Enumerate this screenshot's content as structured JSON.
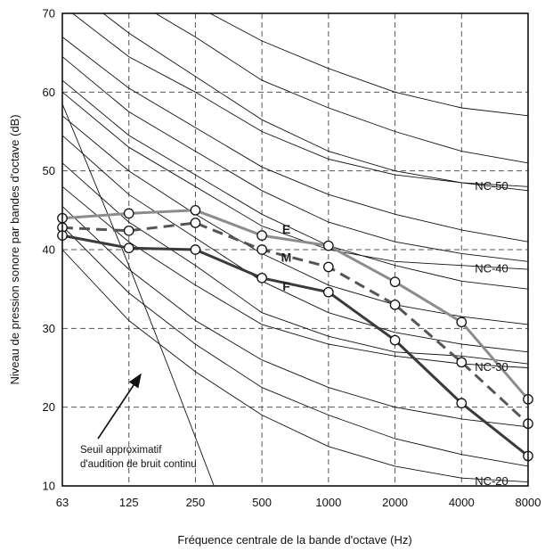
{
  "chart_data": {
    "type": "line",
    "xlabel": "Fréquence centrale de la bande d'octave (Hz)",
    "ylabel": "Niveau de pression sonore par bandes d'octave (dB)",
    "categories": [
      "63",
      "125",
      "250",
      "500",
      "1000",
      "2000",
      "4000",
      "8000"
    ],
    "ylim": [
      10,
      70
    ],
    "yticks": [
      10,
      20,
      30,
      40,
      50,
      60,
      70
    ],
    "grid": true,
    "series": [
      {
        "name": "E",
        "values": [
          44.0,
          44.6,
          45.0,
          41.8,
          40.5,
          35.9,
          30.8,
          21.0
        ],
        "color": "#8c8c8c",
        "dash": "solid"
      },
      {
        "name": "M",
        "values": [
          42.8,
          42.4,
          43.4,
          40.0,
          37.8,
          33.0,
          25.7,
          17.9
        ],
        "color": "#555555",
        "dash": "dashed"
      },
      {
        "name": "F",
        "values": [
          41.8,
          40.2,
          40.0,
          36.4,
          34.6,
          28.5,
          20.5,
          13.8
        ],
        "color": "#3a3a3a",
        "dash": "solid"
      }
    ],
    "nc_curves": [
      {
        "values": [
          83.0,
          76.0,
          71.0,
          66.5,
          63.0,
          60.0,
          58.0,
          57.0
        ]
      },
      {
        "values": [
          79.0,
          72.0,
          67.0,
          61.5,
          58.0,
          55.0,
          52.5,
          51.0
        ]
      },
      {
        "values": [
          74.0,
          67.5,
          62.0,
          56.5,
          52.5,
          50.0,
          48.5,
          47.5
        ]
      },
      {
        "label": "NC-50",
        "values": [
          71.0,
          64.5,
          60.0,
          55.0,
          51.5,
          49.5,
          48.5,
          48.0
        ]
      },
      {
        "values": [
          67.0,
          60.5,
          55.5,
          50.5,
          47.0,
          44.5,
          42.5,
          41.0
        ]
      },
      {
        "values": [
          64.5,
          57.5,
          52.5,
          47.5,
          43.5,
          41.0,
          39.5,
          38.5
        ]
      },
      {
        "values": [
          61.5,
          54.5,
          49.5,
          44.5,
          40.5,
          38.0,
          36.0,
          35.0
        ]
      },
      {
        "label": "NC-40",
        "values": [
          60.0,
          53.0,
          48.0,
          43.0,
          40.0,
          38.5,
          38.0,
          37.5
        ]
      },
      {
        "values": [
          57.0,
          50.0,
          44.5,
          39.5,
          35.5,
          33.0,
          31.5,
          30.5
        ]
      },
      {
        "values": [
          54.5,
          47.0,
          41.5,
          36.0,
          32.0,
          29.5,
          28.0,
          27.0
        ]
      },
      {
        "values": [
          51.0,
          43.5,
          38.0,
          32.0,
          29.0,
          27.0,
          26.5,
          25.5
        ]
      },
      {
        "label": "NC-30",
        "values": [
          48.0,
          41.0,
          35.5,
          30.5,
          28.0,
          26.5,
          25.5,
          25.0
        ]
      },
      {
        "values": [
          45.5,
          37.5,
          31.0,
          26.0,
          22.5,
          20.0,
          18.5,
          17.5
        ]
      },
      {
        "values": [
          43.0,
          34.5,
          28.0,
          22.5,
          19.0,
          16.0,
          14.0,
          12.5
        ]
      },
      {
        "label": "NC-20",
        "values": [
          40.0,
          31.0,
          24.5,
          19.0,
          15.0,
          12.5,
          11.0,
          10.5
        ]
      }
    ],
    "threshold": {
      "x": [
        0.0,
        1.0,
        1.6,
        2.28
      ],
      "values": [
        58.5,
        38.0,
        25.0,
        10.0
      ]
    },
    "nc_labels": [
      "NC-50",
      "NC-40",
      "NC-30",
      "NC-20"
    ],
    "annotation": {
      "lines": [
        "Seuil approximatif",
        "d'audition de bruit continu"
      ]
    }
  }
}
